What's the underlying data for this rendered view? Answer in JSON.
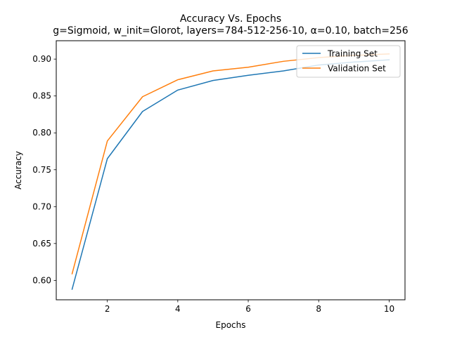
{
  "chart_data": {
    "type": "line",
    "title": "Accuracy Vs. Epochs",
    "subtitle": "g=Sigmoid, w_init=Glorot, layers=784-512-256-10, α=0.10, batch=256",
    "xlabel": "Epochs",
    "ylabel": "Accuracy",
    "xlim": [
      0.55,
      10.45
    ],
    "ylim": [
      0.5737,
      0.9249
    ],
    "x": [
      1,
      2,
      3,
      4,
      5,
      6,
      7,
      8,
      9,
      10
    ],
    "xticks": [
      2,
      4,
      6,
      8,
      10
    ],
    "xtick_labels": [
      "2",
      "4",
      "6",
      "8",
      "10"
    ],
    "yticks": [
      0.6,
      0.65,
      0.7,
      0.75,
      0.8,
      0.85,
      0.9
    ],
    "ytick_labels": [
      "0.60",
      "0.65",
      "0.70",
      "0.75",
      "0.80",
      "0.85",
      "0.90"
    ],
    "grid": false,
    "legend_position": "top-right",
    "series": [
      {
        "name": "Training Set",
        "color": "#1f77b4",
        "values": [
          0.588,
          0.765,
          0.829,
          0.858,
          0.871,
          0.878,
          0.884,
          0.892,
          0.896,
          0.899
        ]
      },
      {
        "name": "Validation Set",
        "color": "#ff7f0e",
        "values": [
          0.609,
          0.789,
          0.849,
          0.872,
          0.884,
          0.889,
          0.897,
          0.902,
          0.905,
          0.907
        ]
      }
    ]
  }
}
